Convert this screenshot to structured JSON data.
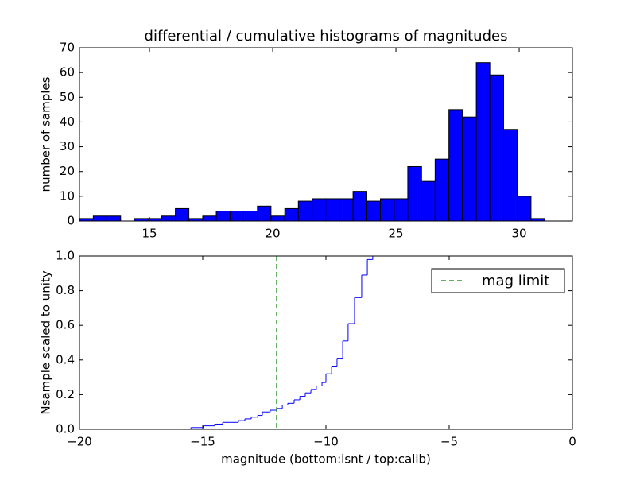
{
  "chart_data": [
    {
      "type": "histogram",
      "title": "differential / cumulative histograms of magnitudes",
      "y_label": "number of samples",
      "color": "#0000ff",
      "bins": [
        12.16,
        12.72,
        13.27,
        13.83,
        14.38,
        14.94,
        15.49,
        16.05,
        16.6,
        17.16,
        17.71,
        18.27,
        18.82,
        19.38,
        19.93,
        20.49,
        21.04,
        21.6,
        22.15,
        22.71,
        23.26,
        23.82,
        24.37,
        24.93,
        25.48,
        26.04,
        26.59,
        27.15,
        27.7,
        28.26,
        28.81,
        29.37,
        29.92,
        30.48,
        31.03
      ],
      "values": [
        1,
        2,
        2,
        0,
        1,
        1,
        2,
        5,
        1,
        2,
        4,
        4,
        4,
        6,
        2,
        5,
        8,
        9,
        9,
        9,
        12,
        8,
        9,
        9,
        22,
        16,
        25,
        45,
        42,
        64,
        59,
        37,
        10,
        1
      ],
      "xlim": [
        12.16,
        32.16
      ],
      "xticks": [
        15,
        20,
        25,
        30
      ],
      "ylim": [
        0,
        70
      ],
      "yticks": [
        0,
        10,
        20,
        30,
        40,
        50,
        60,
        70
      ]
    },
    {
      "type": "step",
      "x_label": "magnitude (bottom:isnt / top:calib)",
      "y_label": "Nsample scaled to unity",
      "color": "#0000ff",
      "x": [
        -19.03,
        -15.48,
        -14.97,
        -14.52,
        -14.19,
        -13.81,
        -13.55,
        -13.29,
        -13.03,
        -12.77,
        -12.58,
        -12.26,
        -12.0,
        -11.77,
        -11.55,
        -11.29,
        -11.06,
        -10.84,
        -10.61,
        -10.39,
        -10.16,
        -10.0,
        -9.77,
        -9.55,
        -9.32,
        -9.1,
        -8.84,
        -8.55,
        -8.32,
        -8.1
      ],
      "values": [
        0.0,
        0.01,
        0.02,
        0.03,
        0.04,
        0.04,
        0.05,
        0.06,
        0.07,
        0.08,
        0.1,
        0.11,
        0.12,
        0.14,
        0.15,
        0.17,
        0.19,
        0.21,
        0.23,
        0.25,
        0.27,
        0.32,
        0.36,
        0.41,
        0.51,
        0.61,
        0.76,
        0.89,
        0.98,
        1.0
      ],
      "vline": {
        "name": "mag limit",
        "x": -12.0,
        "color": "#008000"
      },
      "legend": "upper right",
      "xlim": [
        -20,
        0
      ],
      "xticks": [
        {
          "value": -20,
          "label": "−20"
        },
        {
          "value": -15,
          "label": "−15"
        },
        {
          "value": -10,
          "label": "−10"
        },
        {
          "value": -5,
          "label": "−5"
        },
        0
      ],
      "ylim": [
        0,
        1
      ],
      "yticks": [
        {
          "value": 0,
          "label": "0.0"
        },
        {
          "value": 0.2,
          "label": "0.2"
        },
        {
          "value": 0.4,
          "label": "0.4"
        },
        {
          "value": 0.6,
          "label": "0.6"
        },
        {
          "value": 0.8,
          "label": "0.8"
        },
        {
          "value": 1,
          "label": "1.0"
        }
      ]
    }
  ]
}
